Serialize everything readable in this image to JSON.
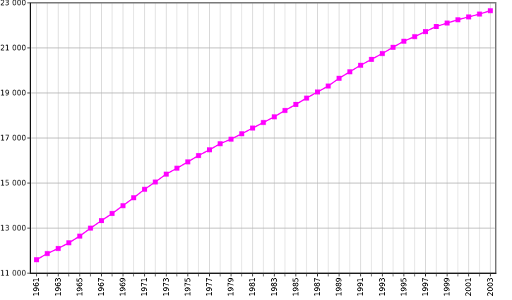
{
  "chart_data": {
    "type": "line",
    "title": "",
    "xlabel": "",
    "ylabel": "",
    "legend": "none",
    "grid": {
      "vertical": "every year",
      "horizontal": "every 2000 units"
    },
    "line_color": "#ff00ff",
    "marker": "square",
    "x": [
      1961,
      1962,
      1963,
      1964,
      1965,
      1966,
      1967,
      1968,
      1969,
      1970,
      1971,
      1972,
      1973,
      1974,
      1975,
      1976,
      1977,
      1978,
      1979,
      1980,
      1981,
      1982,
      1983,
      1984,
      1985,
      1986,
      1987,
      1988,
      1989,
      1990,
      1991,
      1992,
      1993,
      1994,
      1995,
      1996,
      1997,
      1998,
      1999,
      2000,
      2001,
      2002,
      2003
    ],
    "values": [
      11600,
      11875,
      12100,
      12350,
      12650,
      13000,
      13330,
      13650,
      14000,
      14350,
      14725,
      15050,
      15400,
      15660,
      15940,
      16225,
      16475,
      16750,
      16950,
      17190,
      17440,
      17690,
      17940,
      18225,
      18490,
      18775,
      19040,
      19310,
      19650,
      19940,
      20230,
      20490,
      20750,
      21025,
      21300,
      21500,
      21725,
      21950,
      22100,
      22250,
      22375,
      22500,
      22650
    ],
    "ylim": [
      11000,
      23000
    ],
    "yticks": {
      "values": [
        11000,
        13000,
        15000,
        17000,
        19000,
        21000,
        23000
      ],
      "labels": [
        "11 000",
        "13 000",
        "15 000",
        "17 000",
        "19 000",
        "21 000",
        "23 000"
      ]
    },
    "xticks": {
      "minor_tick_every_years": 1,
      "labeled_years": [
        1961,
        1963,
        1965,
        1967,
        1969,
        1971,
        1973,
        1975,
        1977,
        1979,
        1981,
        1983,
        1985,
        1987,
        1989,
        1991,
        1993,
        1995,
        1997,
        1999,
        2001,
        2003
      ]
    },
    "colors": {
      "series": "#ff00ff",
      "grid_vertical": "#d7d7d7",
      "grid_horizontal": "#b3b3b3",
      "axis_dark": "#262626",
      "border_light": "#7d7d7d",
      "background": "#ffffff",
      "text": "#000000"
    }
  }
}
